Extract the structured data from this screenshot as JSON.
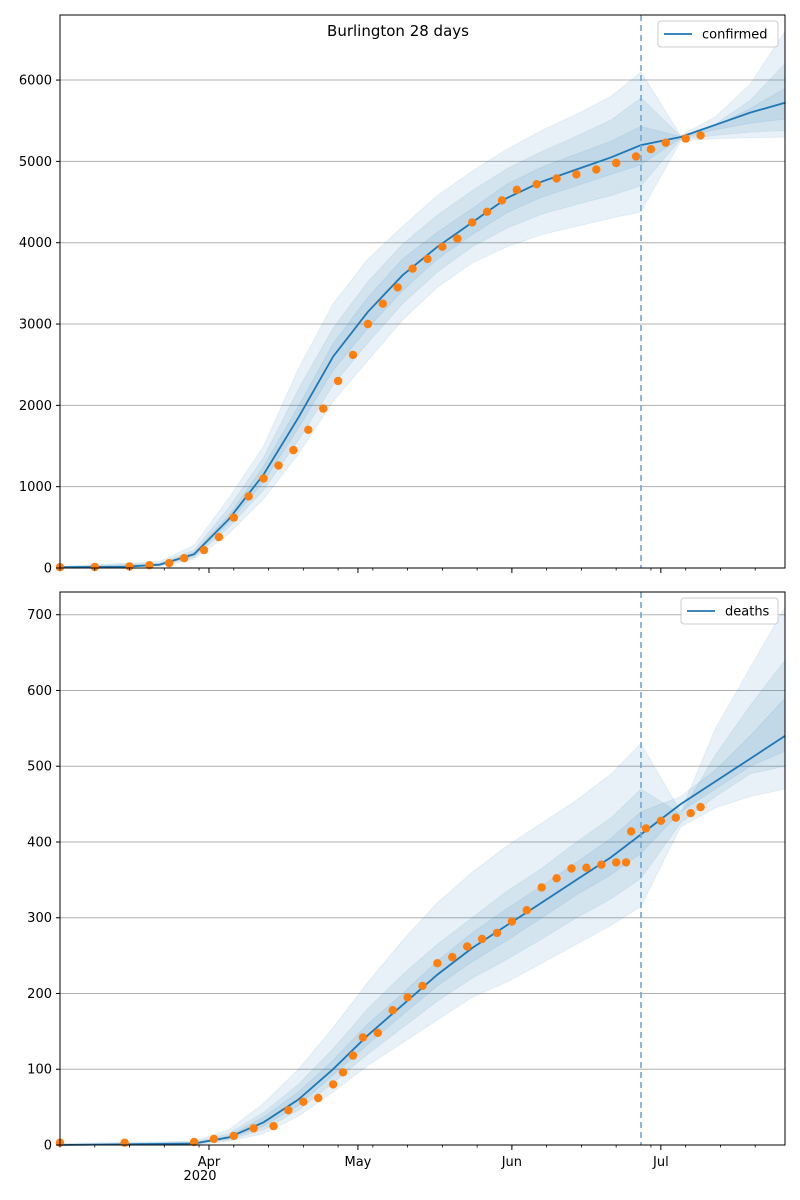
{
  "title": "Burlington 28 days",
  "colors": {
    "model": "#1f77b4",
    "observed": "#ff7f0e",
    "band": "#1f77b4",
    "grid": "#b0b0b0",
    "axes": "#000000",
    "cutoff": "#6fa8d6"
  },
  "x_axis": {
    "tick_labels": [
      "Apr",
      "May",
      "Jun",
      "Jul"
    ],
    "year_label": "2020",
    "range": [
      "2020-03-02",
      "2020-07-26"
    ]
  },
  "forecast_start": "2020-06-27",
  "chart_data": [
    {
      "type": "line",
      "panel": "top",
      "title": "Burlington 28 days",
      "legend": "confirmed",
      "legend_position": "top-right",
      "grid": "y",
      "ylim": [
        0,
        6800
      ],
      "yticks": [
        0,
        1000,
        2000,
        3000,
        4000,
        5000,
        6000
      ],
      "model": {
        "name": "confirmed",
        "x": [
          "2020-03-02",
          "2020-03-15",
          "2020-03-22",
          "2020-03-29",
          "2020-04-05",
          "2020-04-12",
          "2020-04-19",
          "2020-04-26",
          "2020-05-03",
          "2020-05-10",
          "2020-05-17",
          "2020-05-24",
          "2020-05-31",
          "2020-06-07",
          "2020-06-14",
          "2020-06-21",
          "2020-06-27",
          "2020-07-05",
          "2020-07-12",
          "2020-07-19",
          "2020-07-26"
        ],
        "y": [
          10,
          15,
          40,
          170,
          600,
          1150,
          1850,
          2600,
          3150,
          3600,
          3950,
          4250,
          4550,
          4750,
          4900,
          5050,
          5200,
          5300,
          5450,
          5600,
          5720
        ]
      },
      "bands": [
        {
          "x": [
            "2020-03-02",
            "2020-03-22",
            "2020-03-29",
            "2020-04-05",
            "2020-04-12",
            "2020-04-19",
            "2020-04-26",
            "2020-05-03",
            "2020-05-10",
            "2020-05-17",
            "2020-05-24",
            "2020-05-31",
            "2020-06-07",
            "2020-06-14",
            "2020-06-21",
            "2020-06-27",
            "2020-07-05",
            "2020-07-12",
            "2020-07-19",
            "2020-07-26"
          ],
          "low": [
            0,
            20,
            110,
            420,
            850,
            1400,
            2050,
            2550,
            3050,
            3450,
            3750,
            3950,
            4100,
            4200,
            4300,
            4380,
            5250,
            5280,
            5290,
            5300
          ],
          "high": [
            20,
            80,
            280,
            860,
            1500,
            2450,
            3250,
            3800,
            4200,
            4580,
            4880,
            5150,
            5380,
            5580,
            5800,
            6100,
            5320,
            5550,
            5950,
            6600
          ]
        },
        {
          "x": [
            "2020-03-02",
            "2020-03-22",
            "2020-03-29",
            "2020-04-05",
            "2020-04-12",
            "2020-04-19",
            "2020-04-26",
            "2020-05-03",
            "2020-05-10",
            "2020-05-17",
            "2020-05-24",
            "2020-05-31",
            "2020-06-07",
            "2020-06-14",
            "2020-06-21",
            "2020-06-27",
            "2020-07-05",
            "2020-07-12",
            "2020-07-19",
            "2020-07-26"
          ],
          "low": [
            5,
            28,
            130,
            500,
            960,
            1570,
            2250,
            2770,
            3250,
            3640,
            3950,
            4180,
            4350,
            4470,
            4580,
            4700,
            5270,
            5320,
            5360,
            5380
          ],
          "high": [
            15,
            60,
            220,
            740,
            1360,
            2200,
            2950,
            3520,
            3980,
            4340,
            4640,
            4910,
            5120,
            5310,
            5510,
            5780,
            5310,
            5460,
            5750,
            6200
          ]
        },
        {
          "x": [
            "2020-03-02",
            "2020-03-22",
            "2020-03-29",
            "2020-04-05",
            "2020-04-12",
            "2020-04-19",
            "2020-04-26",
            "2020-05-03",
            "2020-05-10",
            "2020-05-17",
            "2020-05-24",
            "2020-05-31",
            "2020-06-07",
            "2020-06-14",
            "2020-06-21",
            "2020-06-27",
            "2020-07-05",
            "2020-07-12",
            "2020-07-19",
            "2020-07-26"
          ],
          "low": [
            8,
            34,
            148,
            555,
            1060,
            1720,
            2430,
            2950,
            3410,
            3800,
            4100,
            4370,
            4560,
            4700,
            4840,
            4960,
            5285,
            5390,
            5470,
            5520
          ],
          "high": [
            12,
            48,
            192,
            650,
            1250,
            1990,
            2760,
            3330,
            3800,
            4130,
            4420,
            4720,
            4930,
            5090,
            5250,
            5430,
            5305,
            5440,
            5650,
            5900
          ]
        }
      ],
      "observed": {
        "x": [
          "2020-03-02",
          "2020-03-09",
          "2020-03-16",
          "2020-03-20",
          "2020-03-24",
          "2020-03-27",
          "2020-03-31",
          "2020-04-03",
          "2020-04-06",
          "2020-04-09",
          "2020-04-12",
          "2020-04-15",
          "2020-04-18",
          "2020-04-21",
          "2020-04-24",
          "2020-04-27",
          "2020-04-30",
          "2020-05-03",
          "2020-05-06",
          "2020-05-09",
          "2020-05-12",
          "2020-05-15",
          "2020-05-18",
          "2020-05-21",
          "2020-05-24",
          "2020-05-27",
          "2020-05-30",
          "2020-06-02",
          "2020-06-06",
          "2020-06-10",
          "2020-06-14",
          "2020-06-18",
          "2020-06-22",
          "2020-06-26",
          "2020-06-29",
          "2020-07-02",
          "2020-07-06",
          "2020-07-09"
        ],
        "y": [
          10,
          12,
          20,
          35,
          60,
          120,
          220,
          380,
          620,
          880,
          1100,
          1260,
          1450,
          1700,
          1960,
          2300,
          2620,
          3000,
          3250,
          3450,
          3680,
          3800,
          3950,
          4050,
          4250,
          4380,
          4520,
          4650,
          4720,
          4790,
          4840,
          4900,
          4980,
          5060,
          5150,
          5230,
          5280,
          5320
        ]
      }
    },
    {
      "type": "line",
      "panel": "bottom",
      "title": "",
      "legend": "deaths",
      "legend_position": "top-right",
      "grid": "y",
      "ylim": [
        0,
        730
      ],
      "yticks": [
        0,
        100,
        200,
        300,
        400,
        500,
        600,
        700
      ],
      "model": {
        "name": "deaths",
        "x": [
          "2020-03-02",
          "2020-03-29",
          "2020-04-05",
          "2020-04-12",
          "2020-04-19",
          "2020-04-26",
          "2020-05-03",
          "2020-05-10",
          "2020-05-17",
          "2020-05-24",
          "2020-05-31",
          "2020-06-07",
          "2020-06-14",
          "2020-06-21",
          "2020-06-27",
          "2020-07-05",
          "2020-07-12",
          "2020-07-19",
          "2020-07-26"
        ],
        "y": [
          0,
          2,
          10,
          30,
          60,
          100,
          145,
          185,
          225,
          260,
          290,
          320,
          350,
          380,
          410,
          450,
          480,
          510,
          540
        ]
      },
      "bands": [
        {
          "x": [
            "2020-03-02",
            "2020-03-29",
            "2020-04-05",
            "2020-04-12",
            "2020-04-19",
            "2020-04-26",
            "2020-05-03",
            "2020-05-10",
            "2020-05-17",
            "2020-05-24",
            "2020-05-31",
            "2020-06-07",
            "2020-06-14",
            "2020-06-21",
            "2020-06-27",
            "2020-07-05",
            "2020-07-12",
            "2020-07-19",
            "2020-07-26"
          ],
          "low": [
            0,
            0,
            5,
            15,
            38,
            70,
            105,
            135,
            165,
            195,
            215,
            240,
            265,
            290,
            315,
            420,
            445,
            460,
            470
          ],
          "high": [
            2,
            5,
            20,
            55,
            100,
            155,
            215,
            270,
            320,
            360,
            395,
            425,
            455,
            490,
            530,
            440,
            550,
            630,
            710
          ]
        },
        {
          "x": [
            "2020-03-02",
            "2020-03-29",
            "2020-04-05",
            "2020-04-12",
            "2020-04-19",
            "2020-04-26",
            "2020-05-03",
            "2020-05-10",
            "2020-05-17",
            "2020-05-24",
            "2020-05-31",
            "2020-06-07",
            "2020-06-14",
            "2020-06-21",
            "2020-06-27",
            "2020-07-05",
            "2020-07-12",
            "2020-07-19",
            "2020-07-26"
          ],
          "low": [
            0,
            1,
            7,
            20,
            46,
            82,
            120,
            155,
            190,
            220,
            245,
            272,
            300,
            325,
            352,
            425,
            460,
            490,
            500
          ],
          "high": [
            1,
            4,
            15,
            43,
            80,
            127,
            180,
            225,
            265,
            300,
            335,
            365,
            400,
            432,
            470,
            437,
            515,
            580,
            640
          ]
        },
        {
          "x": [
            "2020-03-02",
            "2020-03-29",
            "2020-04-05",
            "2020-04-12",
            "2020-04-19",
            "2020-04-26",
            "2020-05-03",
            "2020-05-10",
            "2020-05-17",
            "2020-05-24",
            "2020-05-31",
            "2020-06-07",
            "2020-06-14",
            "2020-06-21",
            "2020-06-27",
            "2020-07-05",
            "2020-07-12",
            "2020-07-19",
            "2020-07-26"
          ],
          "low": [
            0,
            1,
            8,
            25,
            52,
            92,
            133,
            172,
            210,
            242,
            270,
            300,
            330,
            357,
            385,
            440,
            470,
            500,
            520
          ],
          "high": [
            1,
            3,
            12,
            37,
            70,
            112,
            160,
            200,
            243,
            280,
            312,
            342,
            373,
            405,
            440,
            460,
            495,
            540,
            590
          ]
        }
      ],
      "observed": {
        "x": [
          "2020-03-02",
          "2020-03-15",
          "2020-03-29",
          "2020-04-02",
          "2020-04-06",
          "2020-04-10",
          "2020-04-14",
          "2020-04-17",
          "2020-04-20",
          "2020-04-23",
          "2020-04-26",
          "2020-04-28",
          "2020-04-30",
          "2020-05-02",
          "2020-05-05",
          "2020-05-08",
          "2020-05-11",
          "2020-05-14",
          "2020-05-17",
          "2020-05-20",
          "2020-05-23",
          "2020-05-26",
          "2020-05-29",
          "2020-06-01",
          "2020-06-04",
          "2020-06-07",
          "2020-06-10",
          "2020-06-13",
          "2020-06-16",
          "2020-06-19",
          "2020-06-22",
          "2020-06-24",
          "2020-06-25",
          "2020-06-28",
          "2020-07-01",
          "2020-07-04",
          "2020-07-07",
          "2020-07-09"
        ],
        "y": [
          3,
          3,
          4,
          8,
          12,
          22,
          25,
          46,
          57,
          62,
          80,
          96,
          118,
          142,
          148,
          178,
          195,
          210,
          240,
          248,
          262,
          272,
          280,
          295,
          310,
          340,
          352,
          365,
          366,
          370,
          373,
          373,
          414,
          418,
          428,
          432,
          438,
          446
        ]
      }
    }
  ]
}
